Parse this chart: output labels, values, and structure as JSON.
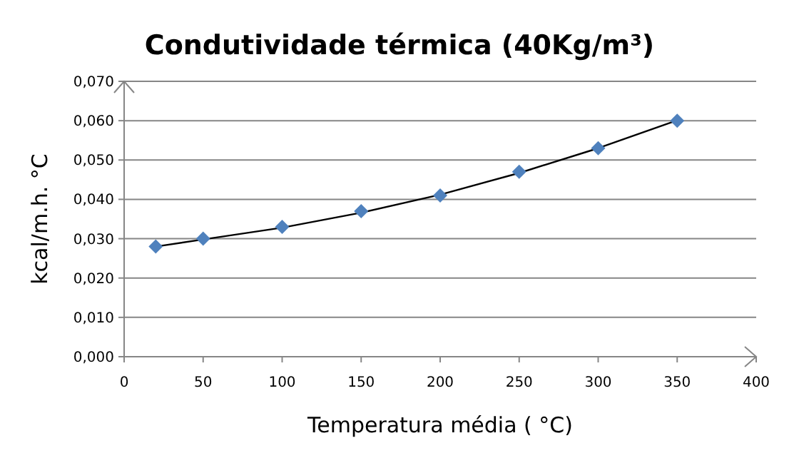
{
  "chart_data": {
    "type": "scatter",
    "title": "Condutividade térmica  (40Kg/m³)",
    "xlabel": "Temperatura média ( °C)",
    "ylabel": "kcal/m.h. °C",
    "x": [
      20,
      50,
      100,
      150,
      200,
      250,
      300,
      350
    ],
    "series": [
      {
        "color": "#4f81bd",
        "marker": "diamond",
        "values": [
          0.028,
          0.03,
          0.033,
          0.037,
          0.041,
          0.047,
          0.053,
          0.06
        ]
      },
      {
        "type": "line",
        "color": "#000000",
        "marker": "none",
        "x": [
          20,
          50,
          100,
          150,
          200,
          250,
          300,
          350
        ],
        "values": [
          0.028,
          0.0298,
          0.0328,
          0.0366,
          0.0412,
          0.0467,
          0.053,
          0.0601
        ]
      }
    ],
    "xlim": [
      0,
      400
    ],
    "xticks": [
      0,
      50,
      100,
      150,
      200,
      250,
      300,
      350,
      400
    ],
    "ylim": [
      0,
      0.07
    ],
    "yticks": [
      {
        "value": 0,
        "label": "0,000"
      },
      {
        "value": 0.01,
        "label": "0,010"
      },
      {
        "value": 0.02,
        "label": "0,020"
      },
      {
        "value": 0.03,
        "label": "0,030"
      },
      {
        "value": 0.04,
        "label": "0,040"
      },
      {
        "value": 0.05,
        "label": "0,050"
      },
      {
        "value": 0.06,
        "label": "0,060"
      },
      {
        "value": 0.07,
        "label": "0,070"
      }
    ],
    "grid": "y"
  }
}
